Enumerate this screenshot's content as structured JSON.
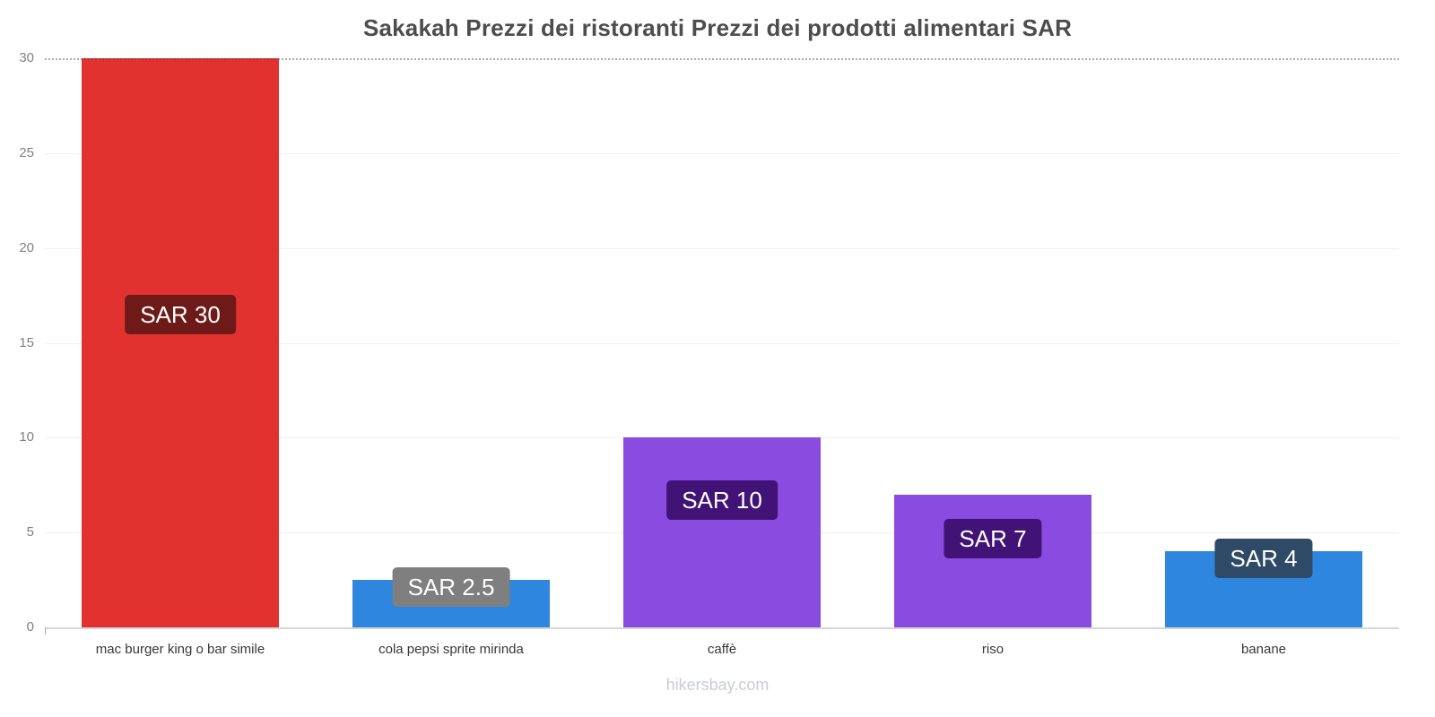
{
  "page": {
    "footer": "hikersbay.com"
  },
  "chart_data": {
    "type": "bar",
    "title": "Sakakah Prezzi dei ristoranti Prezzi dei prodotti alimentari SAR",
    "categories": [
      "mac burger king o bar simile",
      "cola pepsi sprite mirinda",
      "caffè",
      "riso",
      "banane"
    ],
    "values": [
      30,
      2.5,
      10,
      7,
      4
    ],
    "value_labels": [
      "SAR 30",
      "SAR 2.5",
      "SAR 10",
      "SAR 7",
      "SAR 4"
    ],
    "currency": "SAR",
    "bar_colors": [
      "#e23230",
      "#2e86de",
      "#8a4be0",
      "#8a4be0",
      "#2e86de"
    ],
    "label_colors": [
      "#6e1a18",
      "#7f7f7f",
      "#421376",
      "#421376",
      "#2e4a66"
    ],
    "xlabel": "",
    "ylabel": "",
    "ylim": [
      0,
      30
    ],
    "yticks": [
      0,
      5,
      10,
      15,
      20,
      25,
      30
    ],
    "grid": "horizontal-faint",
    "legend": "none"
  }
}
